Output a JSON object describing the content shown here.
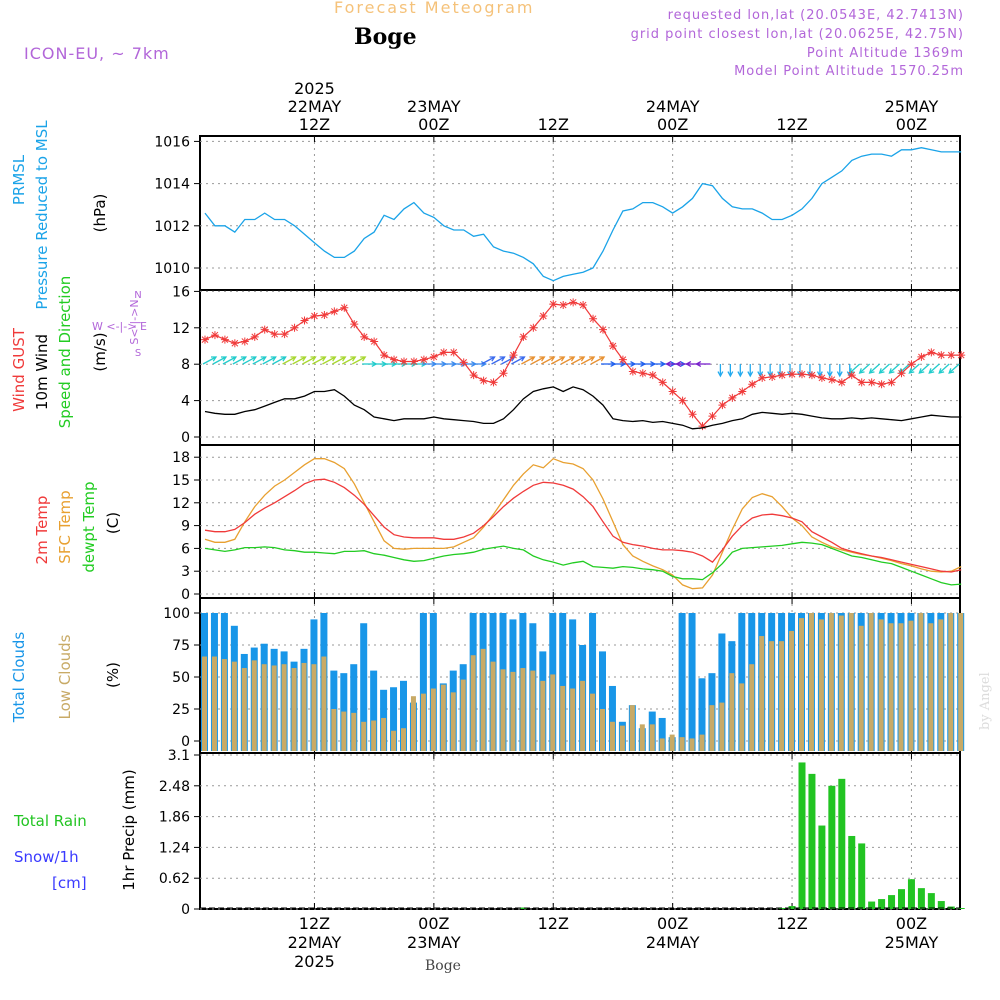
{
  "header": {
    "title": "Forecast Meteogram",
    "station": "Boge",
    "model": "ICON-EU, ~ 7km",
    "requested_location": "requested lon,lat (20.0543E, 42.7413N)",
    "grid_location": "grid point closest lon,lat (20.0625E, 42.75N)",
    "point_altitude": "Point Altitude 1369m",
    "model_altitude": "Model Point Altitude 1570.25m"
  },
  "footer": {
    "station": "Boge",
    "credit": "by Angel"
  },
  "colors": {
    "pressure": "#1aa3e8",
    "gust": "#f03a3a",
    "wind": "#000000",
    "temp2m": "#f03a3a",
    "sfc_temp": "#e8a030",
    "dewpt": "#22cc22",
    "total_clouds": "#1896e8",
    "low_clouds": "#c8aa66",
    "rain": "#22c422",
    "snow": "#3a3aff",
    "dir_label": "#b266d9"
  },
  "chart_data": [
    {
      "type": "line",
      "id": "pressure",
      "ylabel_lines": [
        "PRMSL",
        "Pressure Reduced to MSL",
        "(hPa)"
      ],
      "ylim": [
        1009,
        1016.3
      ],
      "yticks": [
        1010,
        1012,
        1014,
        1016
      ],
      "x_hours": [
        0,
        1,
        2,
        3,
        4,
        5,
        6,
        7,
        8,
        9,
        10,
        11,
        12,
        13,
        14,
        15,
        16,
        17,
        18,
        19,
        20,
        21,
        22,
        23,
        24,
        25,
        26,
        27,
        28,
        29,
        30,
        31,
        32,
        33,
        34,
        35,
        36,
        37,
        38,
        39,
        40,
        41,
        42,
        43,
        44,
        45,
        46,
        47,
        48,
        49,
        50,
        51,
        52,
        53,
        54,
        55,
        56,
        57,
        58,
        59,
        60,
        61,
        62,
        63,
        64,
        65,
        66,
        67,
        68,
        69,
        70,
        71,
        72,
        73,
        74,
        75,
        76
      ],
      "series": [
        {
          "values": [
            1012.6,
            1012.0,
            1012.0,
            1011.7,
            1012.3,
            1012.3,
            1012.6,
            1012.3,
            1012.3,
            1012.0,
            1011.6,
            1011.2,
            1010.8,
            1010.5,
            1010.5,
            1010.8,
            1011.4,
            1011.7,
            1012.5,
            1012.3,
            1012.8,
            1013.1,
            1012.6,
            1012.4,
            1012.0,
            1011.8,
            1011.8,
            1011.5,
            1011.6,
            1011.0,
            1010.8,
            1010.7,
            1010.5,
            1010.2,
            1009.6,
            1009.4,
            1009.6,
            1009.7,
            1009.8,
            1010.0,
            1010.8,
            1011.8,
            1012.7,
            1012.8,
            1013.1,
            1013.1,
            1012.9,
            1012.6,
            1012.9,
            1013.3,
            1014.0,
            1013.9,
            1013.3,
            1012.9,
            1012.8,
            1012.8,
            1012.6,
            1012.3,
            1012.3,
            1012.5,
            1012.8,
            1013.3,
            1014.0,
            1014.3,
            1014.6,
            1015.1,
            1015.3,
            1015.4,
            1015.4,
            1015.3,
            1015.6,
            1015.6,
            1015.7,
            1015.6,
            1015.5,
            1015.5,
            1015.5
          ]
        }
      ]
    },
    {
      "type": "line",
      "id": "wind",
      "ylabel_lines": [
        "Wind GUST",
        "10m Wind",
        "Speed and Direction",
        "(m/s)"
      ],
      "direction_legend": [
        "N",
        "S<-|->N",
        "W <-|-> E",
        "S"
      ],
      "ylim": [
        -0.5,
        16
      ],
      "yticks": [
        0,
        4,
        8,
        12,
        16
      ],
      "series": [
        {
          "name": "Wind GUST",
          "values": [
            10.7,
            11.2,
            10.7,
            10.3,
            10.5,
            11.0,
            11.8,
            11.3,
            11.3,
            12.0,
            12.8,
            13.3,
            13.4,
            13.8,
            14.2,
            12.4,
            11.0,
            10.5,
            9.0,
            8.5,
            8.3,
            8.3,
            8.5,
            8.8,
            9.3,
            9.3,
            8.2,
            6.8,
            6.2,
            6.0,
            7.0,
            9.0,
            11.0,
            12.0,
            13.3,
            14.6,
            14.5,
            14.8,
            14.5,
            13.0,
            11.8,
            10.0,
            8.5,
            7.2,
            7.0,
            6.8,
            6.0,
            5.0,
            4.0,
            2.5,
            1.2,
            2.3,
            3.5,
            4.3,
            5.0,
            5.8,
            6.5,
            6.6,
            6.8,
            6.9,
            6.9,
            6.8,
            6.5,
            6.3,
            6.0,
            6.8,
            6.0,
            6.0,
            5.8,
            6.0,
            7.0,
            8.0,
            8.8,
            9.3,
            9.0,
            9.0,
            9.0
          ]
        },
        {
          "name": "10m Wind",
          "values": [
            2.8,
            2.6,
            2.5,
            2.5,
            2.8,
            3.0,
            3.4,
            3.8,
            4.2,
            4.2,
            4.5,
            5.0,
            5.0,
            5.2,
            4.5,
            3.5,
            3.0,
            2.2,
            2.0,
            1.8,
            2.0,
            2.0,
            2.0,
            2.2,
            2.0,
            1.9,
            1.8,
            1.7,
            1.5,
            1.5,
            2.0,
            3.0,
            4.2,
            5.0,
            5.3,
            5.5,
            5.0,
            5.5,
            5.2,
            4.5,
            3.5,
            2.0,
            1.8,
            1.7,
            1.8,
            1.6,
            1.7,
            1.5,
            1.3,
            0.9,
            1.0,
            1.3,
            1.5,
            1.8,
            2.0,
            2.5,
            2.7,
            2.6,
            2.5,
            2.6,
            2.5,
            2.3,
            2.1,
            2.0,
            2.0,
            2.1,
            2.0,
            2.1,
            2.0,
            1.9,
            1.8,
            2.0,
            2.2,
            2.4,
            2.3,
            2.2,
            2.2
          ]
        }
      ]
    },
    {
      "type": "line",
      "id": "temperature",
      "ylabel_lines": [
        "2m Temp",
        "SFC Temp",
        "dewpt Temp",
        "(C)"
      ],
      "ylim": [
        0,
        18.5
      ],
      "yticks": [
        0,
        3,
        6,
        9,
        12,
        15,
        18
      ],
      "series": [
        {
          "name": "2m Temp",
          "values": [
            8.4,
            8.2,
            8.2,
            8.5,
            9.4,
            10.5,
            11.3,
            12.0,
            12.8,
            13.6,
            14.5,
            15.0,
            15.1,
            14.7,
            14.0,
            13.0,
            11.8,
            10.3,
            8.8,
            7.8,
            7.5,
            7.4,
            7.4,
            7.4,
            7.2,
            7.2,
            7.5,
            8.0,
            9.0,
            10.2,
            11.5,
            12.6,
            13.5,
            14.3,
            14.7,
            14.6,
            14.3,
            13.8,
            12.8,
            11.5,
            9.5,
            7.6,
            6.8,
            6.5,
            6.3,
            6.0,
            5.8,
            5.8,
            5.7,
            5.5,
            5.0,
            4.2,
            5.8,
            7.6,
            9.0,
            10.0,
            10.4,
            10.5,
            10.3,
            10.0,
            9.5,
            8.2,
            7.5,
            6.8,
            6.0,
            5.6,
            5.3,
            5.0,
            4.8,
            4.5,
            4.2,
            3.9,
            3.6,
            3.3,
            3.0,
            2.9,
            3.2
          ]
        },
        {
          "name": "SFC Temp",
          "values": [
            7.2,
            6.8,
            6.8,
            7.2,
            9.5,
            11.5,
            13.0,
            14.2,
            15.0,
            16.0,
            17.0,
            17.8,
            17.8,
            17.3,
            16.5,
            14.5,
            12.0,
            9.5,
            7.0,
            6.0,
            5.9,
            6.0,
            6.0,
            6.0,
            6.0,
            6.2,
            6.8,
            7.4,
            8.8,
            10.5,
            12.4,
            14.3,
            15.8,
            17.0,
            16.6,
            17.8,
            17.3,
            17.1,
            16.5,
            15.0,
            12.5,
            9.5,
            6.5,
            5.0,
            4.3,
            3.7,
            3.2,
            2.5,
            1.2,
            0.7,
            0.8,
            2.5,
            5.5,
            8.5,
            11.2,
            12.7,
            13.2,
            12.8,
            11.5,
            10.0,
            9.0,
            7.5,
            6.8,
            6.2,
            5.8,
            5.5,
            5.2,
            5.0,
            4.7,
            4.4,
            4.0,
            3.7,
            3.3,
            3.0,
            2.9,
            3.0,
            3.6
          ]
        },
        {
          "name": "dewpt Temp",
          "values": [
            6.0,
            5.8,
            5.6,
            5.8,
            6.1,
            6.1,
            6.2,
            6.1,
            5.8,
            5.7,
            5.5,
            5.5,
            5.4,
            5.3,
            5.6,
            5.6,
            5.7,
            5.3,
            5.1,
            4.8,
            4.5,
            4.3,
            4.4,
            4.7,
            5.0,
            5.2,
            5.3,
            5.5,
            5.9,
            6.1,
            6.3,
            6.0,
            5.8,
            5.0,
            4.5,
            4.2,
            3.8,
            4.1,
            4.3,
            3.6,
            3.5,
            3.4,
            3.6,
            3.5,
            3.3,
            3.2,
            3.0,
            2.3,
            2.0,
            2.0,
            1.9,
            2.8,
            4.0,
            5.5,
            6.0,
            6.1,
            6.2,
            6.3,
            6.4,
            6.6,
            6.8,
            6.7,
            6.5,
            6.0,
            5.5,
            5.0,
            4.8,
            4.5,
            4.2,
            4.0,
            3.5,
            3.0,
            2.5,
            2.0,
            1.5,
            1.2,
            1.3
          ]
        }
      ]
    },
    {
      "type": "bar",
      "id": "clouds",
      "ylabel_lines": [
        "Total Clouds",
        "Low Clouds",
        "(%)"
      ],
      "ylim": [
        0,
        100
      ],
      "yticks": [
        0,
        25,
        50,
        75,
        100
      ],
      "series": [
        {
          "name": "Total Clouds",
          "values": [
            100,
            100,
            100,
            90,
            68,
            73,
            76,
            72,
            70,
            62,
            72,
            95,
            100,
            55,
            53,
            60,
            92,
            55,
            40,
            42,
            47,
            30,
            100,
            100,
            45,
            55,
            60,
            100,
            100,
            100,
            100,
            95,
            100,
            92,
            70,
            100,
            100,
            95,
            75,
            100,
            70,
            43,
            15,
            28,
            10,
            23,
            18,
            3,
            100,
            100,
            49,
            53,
            84,
            78,
            100,
            100,
            100,
            100,
            100,
            100,
            100,
            100,
            100,
            100,
            100,
            100,
            100,
            100,
            100,
            100,
            100,
            100,
            100,
            100,
            100,
            100,
            100
          ]
        },
        {
          "name": "Low Clouds",
          "values": [
            66,
            66,
            64,
            62,
            57,
            63,
            60,
            59,
            60,
            57,
            61,
            60,
            66,
            25,
            23,
            22,
            15,
            16,
            18,
            8,
            10,
            35,
            37,
            41,
            44,
            38,
            48,
            67,
            72,
            62,
            56,
            54,
            57,
            55,
            47,
            52,
            43,
            41,
            47,
            37,
            25,
            15,
            12,
            28,
            13,
            13,
            2,
            5,
            3,
            2,
            5,
            28,
            30,
            53,
            45,
            60,
            82,
            78,
            78,
            86,
            96,
            100,
            95,
            100,
            98,
            100,
            90,
            100,
            95,
            92,
            92,
            94,
            100,
            92,
            95,
            100,
            100
          ]
        }
      ]
    },
    {
      "type": "bar",
      "id": "precip",
      "ylabel_lines": [
        "1hr Precip (mm)"
      ],
      "legend_lines": [
        "Total  Rain",
        "Snow/1h",
        "[cm]"
      ],
      "ylim": [
        0,
        3.1
      ],
      "yticks": [
        0,
        0.62,
        1.24,
        1.86,
        2.48,
        3.1
      ],
      "series": [
        {
          "name": "Total Rain",
          "values": [
            0,
            0,
            0,
            0,
            0,
            0,
            0,
            0,
            0,
            0,
            0,
            0,
            0,
            0,
            0,
            0,
            0,
            0,
            0,
            0,
            0,
            0,
            0,
            0,
            0,
            0,
            0,
            0,
            0,
            0,
            0,
            0,
            0.03,
            0,
            0,
            0,
            0,
            0,
            0,
            0,
            0,
            0,
            0,
            0,
            0,
            0,
            0,
            0,
            0,
            0,
            0,
            0,
            0,
            0,
            0,
            0,
            0,
            0,
            0.02,
            0.06,
            2.95,
            2.72,
            1.68,
            2.48,
            2.62,
            1.47,
            1.32,
            0.15,
            0.2,
            0.28,
            0.4,
            0.6,
            0.42,
            0.32,
            0.16,
            0.05,
            0.02
          ]
        }
      ]
    }
  ],
  "time_axis": {
    "top_labels": [
      {
        "hour": 11,
        "lines": [
          "2025",
          "22MAY",
          "12Z"
        ]
      },
      {
        "hour": 23,
        "lines": [
          "23MAY",
          "00Z"
        ]
      },
      {
        "hour": 35,
        "lines": [
          "12Z"
        ]
      },
      {
        "hour": 47,
        "lines": [
          "24MAY",
          "00Z"
        ]
      },
      {
        "hour": 59,
        "lines": [
          "12Z"
        ]
      },
      {
        "hour": 71,
        "lines": [
          "25MAY",
          "00Z"
        ]
      }
    ],
    "bottom_labels": [
      {
        "hour": 11,
        "lines": [
          "12Z",
          "22MAY",
          "2025"
        ]
      },
      {
        "hour": 23,
        "lines": [
          "00Z",
          "23MAY"
        ]
      },
      {
        "hour": 35,
        "lines": [
          "12Z"
        ]
      },
      {
        "hour": 47,
        "lines": [
          "00Z",
          "24MAY"
        ]
      },
      {
        "hour": 59,
        "lines": [
          "12Z"
        ]
      },
      {
        "hour": 71,
        "lines": [
          "00Z",
          "25MAY"
        ]
      }
    ],
    "wind_arrows": [
      {
        "from_hour": 0,
        "to_hour": 8,
        "color": "#22cccc",
        "direction": "ne"
      },
      {
        "from_hour": 8,
        "to_hour": 16,
        "color": "#a8d830",
        "direction": "ne"
      },
      {
        "from_hour": 16,
        "to_hour": 22,
        "color": "#22cccc",
        "direction": "e"
      },
      {
        "from_hour": 22,
        "to_hour": 28,
        "color": "#3a8aee",
        "direction": "e"
      },
      {
        "from_hour": 28,
        "to_hour": 32,
        "color": "#3a6aee",
        "direction": "ne"
      },
      {
        "from_hour": 32,
        "to_hour": 40,
        "color": "#e89030",
        "direction": "ne"
      },
      {
        "from_hour": 40,
        "to_hour": 48,
        "color": "#2060ee",
        "direction": "e"
      },
      {
        "from_hour": 48,
        "to_hour": 52,
        "color": "#7a20cc",
        "direction": "w"
      },
      {
        "from_hour": 52,
        "to_hour": 66,
        "color": "#22aaee",
        "direction": "s"
      },
      {
        "from_hour": 66,
        "to_hour": 77,
        "color": "#22cccc",
        "direction": "sw"
      }
    ]
  }
}
